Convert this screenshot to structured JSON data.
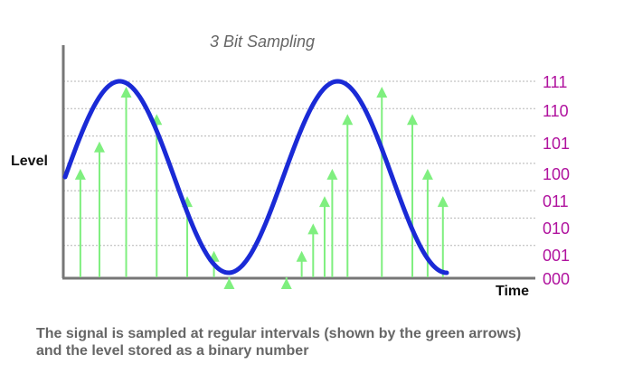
{
  "chart_data": {
    "type": "line",
    "title": "3 Bit Sampling",
    "xlabel": "Time",
    "ylabel": "Level",
    "y_levels": [
      "000",
      "001",
      "010",
      "011",
      "100",
      "101",
      "110",
      "111"
    ],
    "ylim": [
      0,
      7
    ],
    "signal": "sine",
    "signal_amplitude_levels": 3.5,
    "signal_offset_level": 3.5,
    "signal_cycles": 1.75,
    "samples": [
      {
        "t": 0.04,
        "level": 4
      },
      {
        "t": 0.09,
        "level": 5
      },
      {
        "t": 0.16,
        "level": 7
      },
      {
        "t": 0.24,
        "level": 6
      },
      {
        "t": 0.32,
        "level": 3
      },
      {
        "t": 0.39,
        "level": 1
      },
      {
        "t": 0.43,
        "level": 0
      },
      {
        "t": 0.58,
        "level": 0
      },
      {
        "t": 0.62,
        "level": 1
      },
      {
        "t": 0.65,
        "level": 2
      },
      {
        "t": 0.68,
        "level": 3
      },
      {
        "t": 0.7,
        "level": 4
      },
      {
        "t": 0.74,
        "level": 6
      },
      {
        "t": 0.83,
        "level": 7
      },
      {
        "t": 0.91,
        "level": 6
      },
      {
        "t": 0.95,
        "level": 4
      },
      {
        "t": 0.99,
        "level": 3
      }
    ],
    "grid": true,
    "colors": {
      "signal": "#1a2ad6",
      "arrows": "#7fef7f",
      "level_labels": "#b0129e",
      "grid": "#b5b5b5",
      "axis": "#777777"
    }
  },
  "caption": {
    "line1": "The signal is sampled at regular intervals (shown by the green arrows)",
    "line2": "and the level stored as a binary number"
  }
}
